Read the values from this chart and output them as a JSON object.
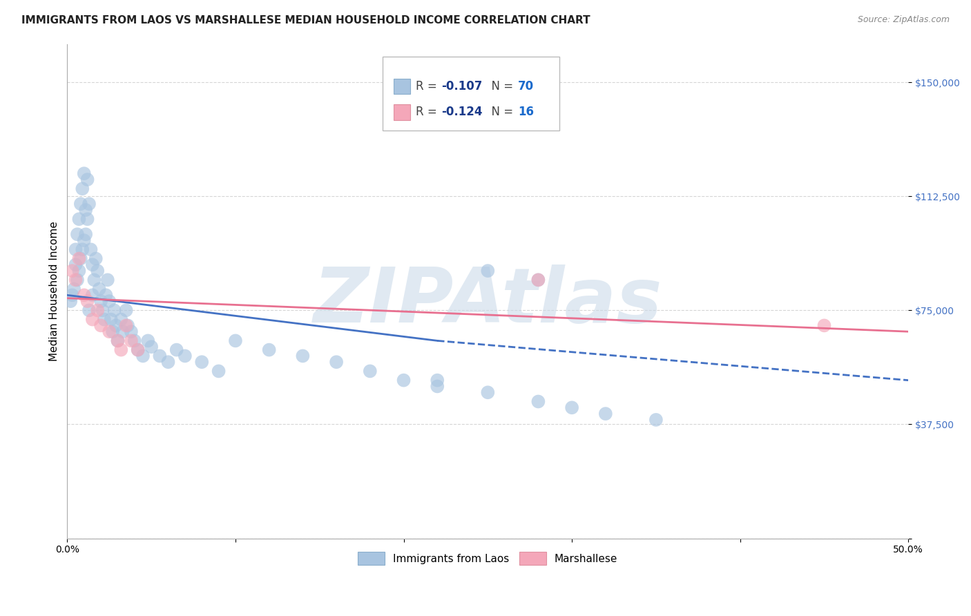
{
  "title": "IMMIGRANTS FROM LAOS VS MARSHALLESE MEDIAN HOUSEHOLD INCOME CORRELATION CHART",
  "source": "Source: ZipAtlas.com",
  "ylabel": "Median Household Income",
  "watermark": "ZIPAtlas",
  "xlim": [
    0.0,
    0.5
  ],
  "ylim": [
    0,
    162500
  ],
  "yticks": [
    0,
    37500,
    75000,
    112500,
    150000
  ],
  "ytick_labels": [
    "",
    "$37,500",
    "$75,000",
    "$112,500",
    "$150,000"
  ],
  "xticks": [
    0.0,
    0.1,
    0.2,
    0.3,
    0.4,
    0.5
  ],
  "xtick_labels": [
    "0.0%",
    "",
    "",
    "",
    "",
    "50.0%"
  ],
  "laos_color": "#a8c4e0",
  "marshallese_color": "#f4a7b9",
  "laos_line_color": "#4472c4",
  "marshallese_line_color": "#e87090",
  "r_color": "#1a3a8a",
  "n_color": "#1a6acc",
  "laos_x": [
    0.002,
    0.003,
    0.004,
    0.005,
    0.005,
    0.006,
    0.006,
    0.007,
    0.007,
    0.008,
    0.008,
    0.009,
    0.009,
    0.01,
    0.01,
    0.011,
    0.011,
    0.012,
    0.012,
    0.013,
    0.013,
    0.014,
    0.015,
    0.015,
    0.016,
    0.017,
    0.018,
    0.019,
    0.02,
    0.021,
    0.022,
    0.023,
    0.024,
    0.025,
    0.026,
    0.027,
    0.028,
    0.029,
    0.03,
    0.032,
    0.033,
    0.035,
    0.036,
    0.038,
    0.04,
    0.042,
    0.045,
    0.048,
    0.05,
    0.055,
    0.06,
    0.065,
    0.07,
    0.08,
    0.09,
    0.1,
    0.12,
    0.14,
    0.16,
    0.18,
    0.2,
    0.22,
    0.25,
    0.28,
    0.3,
    0.32,
    0.35,
    0.28,
    0.25,
    0.22
  ],
  "laos_y": [
    78000,
    80000,
    82000,
    90000,
    95000,
    85000,
    100000,
    88000,
    105000,
    92000,
    110000,
    95000,
    115000,
    98000,
    120000,
    100000,
    108000,
    105000,
    118000,
    110000,
    75000,
    95000,
    80000,
    90000,
    85000,
    92000,
    88000,
    82000,
    78000,
    75000,
    72000,
    80000,
    85000,
    78000,
    72000,
    68000,
    75000,
    70000,
    65000,
    72000,
    68000,
    75000,
    70000,
    68000,
    65000,
    62000,
    60000,
    65000,
    63000,
    60000,
    58000,
    62000,
    60000,
    58000,
    55000,
    65000,
    62000,
    60000,
    58000,
    55000,
    52000,
    50000,
    48000,
    45000,
    43000,
    41000,
    39000,
    85000,
    88000,
    52000
  ],
  "marshallese_x": [
    0.003,
    0.005,
    0.007,
    0.01,
    0.012,
    0.015,
    0.018,
    0.02,
    0.025,
    0.03,
    0.032,
    0.035,
    0.038,
    0.042,
    0.28,
    0.45
  ],
  "marshallese_y": [
    88000,
    85000,
    92000,
    80000,
    78000,
    72000,
    75000,
    70000,
    68000,
    65000,
    62000,
    70000,
    65000,
    62000,
    85000,
    70000
  ],
  "laos_trend_x": [
    0.0,
    0.22
  ],
  "laos_trend_y": [
    80000,
    65000
  ],
  "marsh_trend_x": [
    0.0,
    0.5
  ],
  "marsh_trend_y": [
    79000,
    68000
  ],
  "background_color": "#ffffff",
  "grid_color": "#cccccc",
  "title_fontsize": 11,
  "axis_label_fontsize": 11,
  "tick_fontsize": 10,
  "watermark_alpha": 0.12
}
